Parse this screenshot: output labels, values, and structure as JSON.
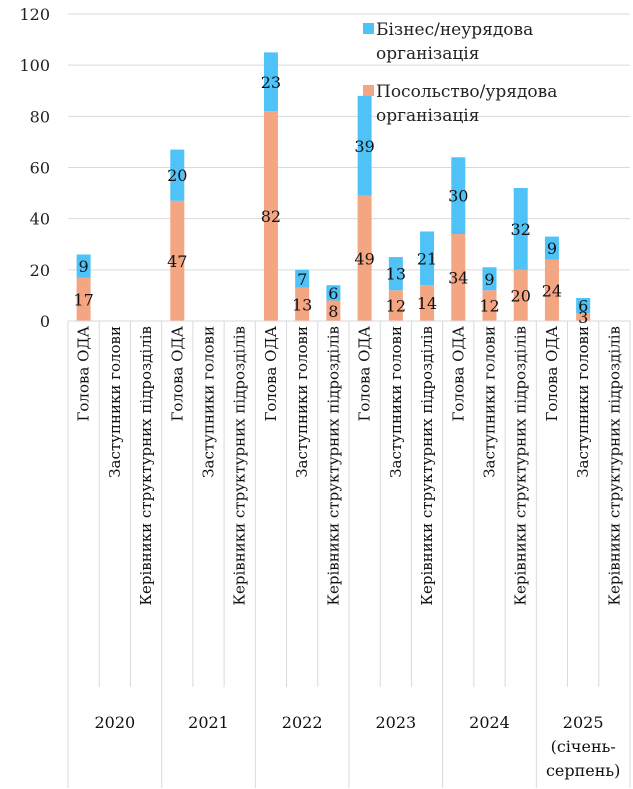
{
  "chart_data": {
    "type": "bar",
    "stacked": true,
    "title": "",
    "ylabel": "",
    "ylim": [
      0,
      120
    ],
    "yticks": [
      0,
      20,
      40,
      60,
      80,
      100,
      120
    ],
    "grid": true,
    "legend_placement": "top-right",
    "years": [
      "2020",
      "2021",
      "2022",
      "2023",
      "2024",
      "2025 (січень-серпень)"
    ],
    "year_lines": [
      [
        "2020"
      ],
      [
        "2021"
      ],
      [
        "2022"
      ],
      [
        "2023"
      ],
      [
        "2024"
      ],
      [
        "2025",
        "(січень-",
        "серпень)"
      ]
    ],
    "subcategories": [
      "Голова ОДА",
      "Заступники голови",
      "Керівники структурних підрозділів"
    ],
    "series": [
      {
        "name": "Посольство/урядова організація",
        "color": "#F4A582",
        "values": [
          17,
          null,
          null,
          47,
          null,
          null,
          82,
          13,
          8,
          49,
          12,
          14,
          34,
          12,
          20,
          24,
          3,
          null
        ]
      },
      {
        "name": "Бізнес/неурядова організація",
        "color": "#4FC3F7",
        "values": [
          9,
          null,
          null,
          20,
          null,
          null,
          23,
          7,
          6,
          39,
          13,
          21,
          30,
          9,
          32,
          9,
          6,
          null
        ]
      }
    ],
    "legend": [
      {
        "lines": [
          "Бізнес/неурядова",
          "організація"
        ],
        "color": "#4FC3F7"
      },
      {
        "lines": [
          "Посольство/урядова",
          "організація"
        ],
        "color": "#F4A582"
      }
    ]
  }
}
